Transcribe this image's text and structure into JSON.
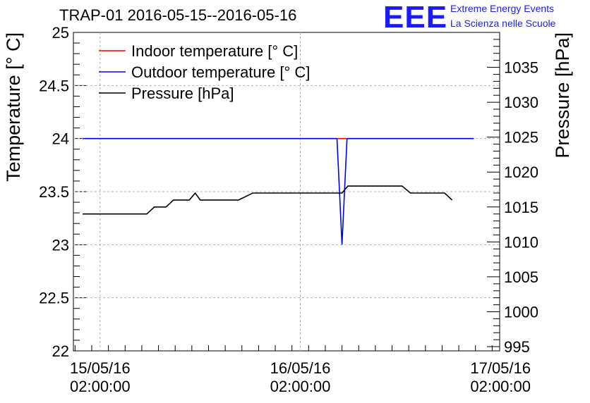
{
  "title": "TRAP-01 2016-05-15--2016-05-16",
  "logo": {
    "mark": "EEE",
    "line1": "Extreme Energy Events",
    "line2": "La Scienza nelle Scuole"
  },
  "chart_data": {
    "type": "line",
    "x_unit": "hours since 15/05/16 00:00",
    "xlim": [
      -1.2,
      49.9
    ],
    "ylim_left": [
      22,
      25
    ],
    "ylim_right": [
      994.4,
      1040
    ],
    "ylabel_left": "Temperature [° C]",
    "ylabel_right": "Pressure [hPa]",
    "grid": true,
    "legend_position": "top-left",
    "x_ticks": [
      {
        "x": 2,
        "line1": "15/05/16",
        "line2": "02:00:00"
      },
      {
        "x": 26,
        "line1": "16/05/16",
        "line2": "02:00:00"
      },
      {
        "x": 50,
        "line1": "17/05/16",
        "line2": "02:00:00"
      }
    ],
    "y_ticks_left": [
      "22",
      "22.5",
      "23",
      "23.5",
      "24",
      "24.5",
      "25"
    ],
    "y_ticks_right": [
      "995",
      "1000",
      "1005",
      "1010",
      "1015",
      "1020",
      "1025",
      "1030",
      "1035"
    ],
    "series": [
      {
        "name": "Indoor temperature [° C]",
        "axis": "left",
        "color": "#ff0000",
        "x": [
          -0.1,
          30.4,
          31.6,
          46.8
        ],
        "y": [
          24.0,
          24.0,
          24.0,
          24.0
        ]
      },
      {
        "name": "Outdoor temperature [° C]",
        "axis": "left",
        "color": "#0000ff",
        "x": [
          -0.1,
          30.4,
          31.0,
          31.6,
          46.8
        ],
        "y": [
          24.0,
          24.0,
          23.0,
          24.0,
          24.0
        ]
      },
      {
        "name": "Pressure [hPa]",
        "axis": "right",
        "color": "#000000",
        "x": [
          -0.1,
          7.6,
          8.5,
          9.9,
          10.8,
          12.7,
          13.4,
          14.0,
          15.0,
          18.6,
          20.3,
          31.0,
          31.7,
          35.0,
          37.2,
          38.2,
          39.2,
          43.3,
          44.2
        ],
        "y": [
          1014,
          1014,
          1015,
          1015,
          1016,
          1016,
          1017,
          1016,
          1016,
          1016,
          1017,
          1017,
          1018,
          1018,
          1018,
          1018,
          1017,
          1017,
          1016
        ]
      }
    ]
  }
}
